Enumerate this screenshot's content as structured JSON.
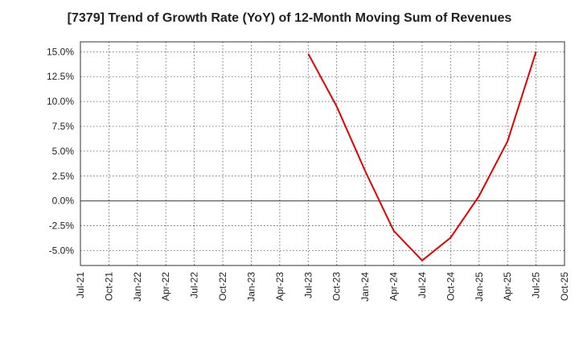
{
  "chart_data": {
    "type": "line",
    "title": "[7379]  Trend of Growth Rate (YoY) of 12-Month Moving Sum of Revenues",
    "xlabel": "",
    "ylabel": "",
    "x_ticks": [
      "Jul-21",
      "Oct-21",
      "Jan-22",
      "Apr-22",
      "Jul-22",
      "Oct-22",
      "Jan-23",
      "Apr-23",
      "Jul-23",
      "Oct-23",
      "Jan-24",
      "Apr-24",
      "Jul-24",
      "Oct-24",
      "Jan-25",
      "Apr-25",
      "Jul-25",
      "Oct-25"
    ],
    "y_ticks": [
      "15.0%",
      "12.5%",
      "10.0%",
      "7.5%",
      "5.0%",
      "2.5%",
      "0.0%",
      "-2.5%",
      "-5.0%"
    ],
    "y_tick_values": [
      15.0,
      12.5,
      10.0,
      7.5,
      5.0,
      2.5,
      0.0,
      -2.5,
      -5.0
    ],
    "ylim": [
      -6.5,
      16.0
    ],
    "grid": true,
    "series": [
      {
        "color": "#e60000",
        "x": [
          "Jul-23",
          "Oct-23",
          "Jan-24",
          "Apr-24",
          "Jul-24",
          "Oct-24",
          "Jan-25",
          "Apr-25",
          "Jul-25"
        ],
        "values": [
          14.8,
          9.5,
          3.0,
          -3.0,
          -6.0,
          -3.7,
          0.5,
          6.0,
          15.0
        ]
      }
    ]
  }
}
